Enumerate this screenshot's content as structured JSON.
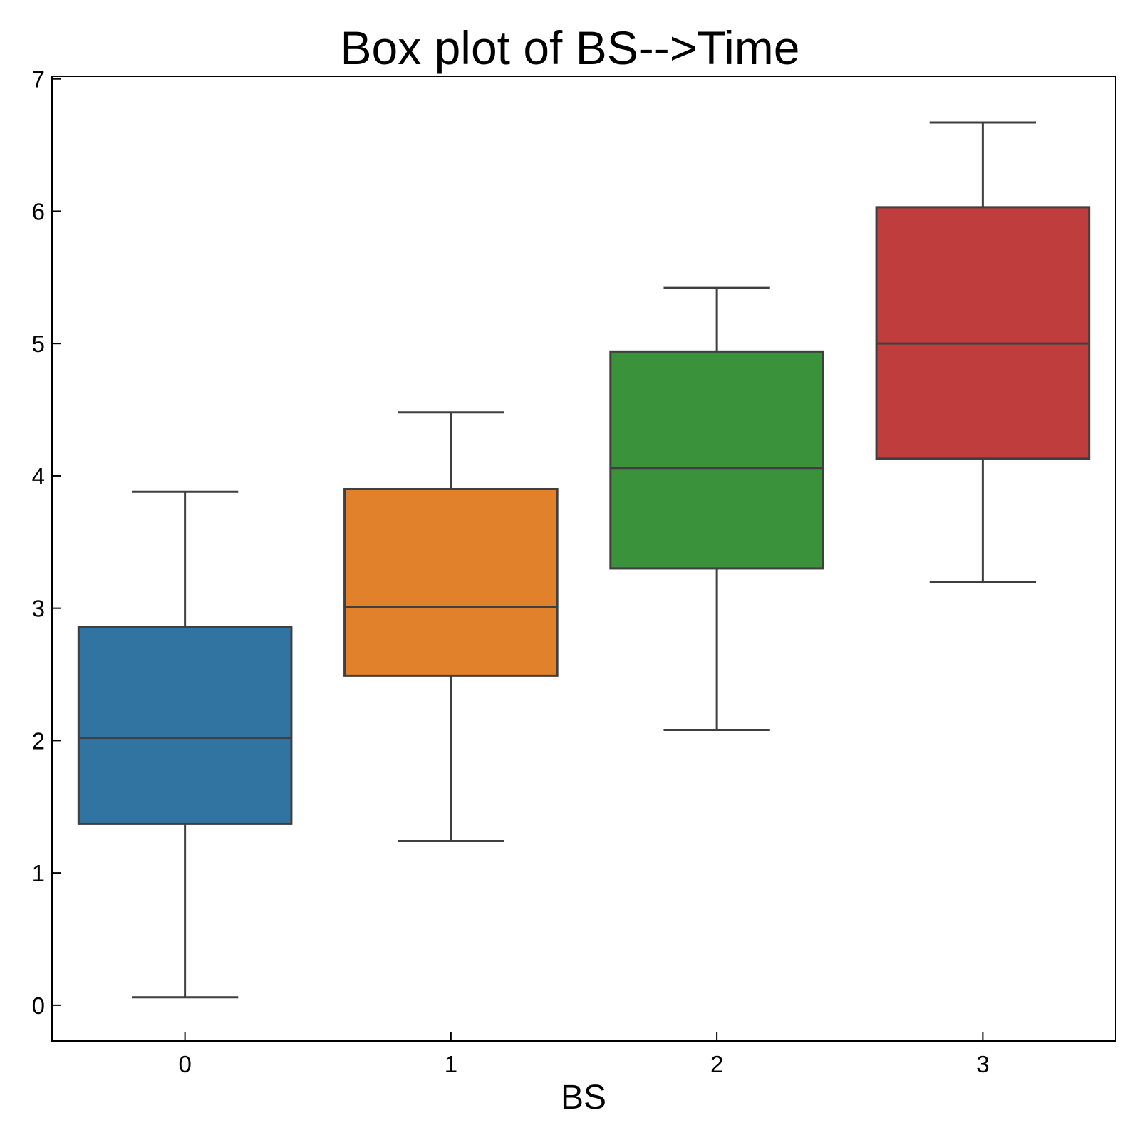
{
  "chart_data": {
    "type": "box",
    "title": "Box plot of BS-->Time",
    "xlabel": "BS",
    "ylabel": "",
    "ylim": [
      -0.27,
      7.02
    ],
    "yticks": [
      "0",
      "1",
      "2",
      "3",
      "4",
      "5",
      "6",
      "7"
    ],
    "grid": false,
    "categories": [
      "0",
      "1",
      "2",
      "3"
    ],
    "boxes": [
      {
        "category": "0",
        "whisker_low": 0.06,
        "q1": 1.37,
        "median": 2.02,
        "q3": 2.86,
        "whisker_high": 3.88,
        "color": "#3274a1"
      },
      {
        "category": "1",
        "whisker_low": 1.24,
        "q1": 2.49,
        "median": 3.01,
        "q3": 3.9,
        "whisker_high": 4.48,
        "color": "#e1812c"
      },
      {
        "category": "2",
        "whisker_low": 2.08,
        "q1": 3.3,
        "median": 4.06,
        "q3": 4.94,
        "whisker_high": 5.42,
        "color": "#3a923a"
      },
      {
        "category": "3",
        "whisker_low": 3.2,
        "q1": 4.13,
        "median": 5.0,
        "q3": 6.03,
        "whisker_high": 6.67,
        "color": "#c03d3e"
      }
    ],
    "line_color": "#3f3f3f"
  }
}
